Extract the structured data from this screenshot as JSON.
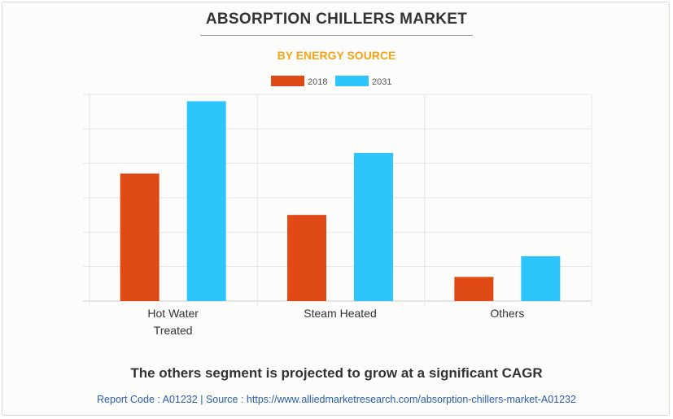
{
  "colors": {
    "series_2018": "#e04a16",
    "series_2031": "#2ec5fd",
    "subtitle": "#f5a31a",
    "link": "#2a5ea8"
  },
  "chart_data": {
    "type": "bar",
    "title": "ABSORPTION CHILLERS MARKET",
    "subtitle": "BY ENERGY SOURCE",
    "categories": [
      "Hot Water Treated",
      "Steam Heated",
      "Others"
    ],
    "category_lines": [
      [
        "Hot Water",
        "Treated"
      ],
      [
        "Steam Heated"
      ],
      [
        "Others"
      ]
    ],
    "series": [
      {
        "name": "2018",
        "values": [
          3.7,
          2.5,
          0.7
        ]
      },
      {
        "name": "2031",
        "values": [
          5.8,
          4.3,
          1.3
        ]
      }
    ],
    "ylim": [
      0,
      6
    ],
    "xlabel": "",
    "ylabel": "",
    "grid": true,
    "legend": "top-center"
  },
  "footer": {
    "note": "The others segment is projected to grow at a significant CAGR",
    "source": "Report Code : A01232  |  Source : https://www.alliedmarketresearch.com/absorption-chillers-market-A01232"
  }
}
